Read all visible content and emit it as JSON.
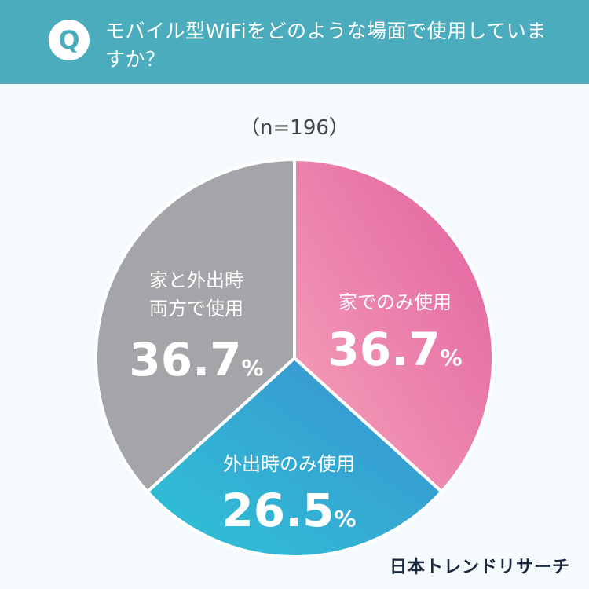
{
  "header": {
    "badge": "Q",
    "question": "モバイル型WiFiをどのような場面で使用していますか？"
  },
  "sample": "（n=196）",
  "chart_data": {
    "type": "pie",
    "title": "モバイル型WiFiをどのような場面で使用していますか？",
    "note": "（n=196）",
    "unit": "%",
    "slices": [
      {
        "label": "家でのみ使用",
        "value": 36.7,
        "color_start": "#f7a3bb",
        "color_end": "#e0609e"
      },
      {
        "label": "外出時のみ使用",
        "value": 26.5,
        "color_start": "#2ec4d6",
        "color_end": "#3b8fd0"
      },
      {
        "label": "家と外出時両方で使用",
        "value": 36.7,
        "color": "#a4a5a8"
      }
    ]
  },
  "logo": "日本トレンドリサーチ"
}
